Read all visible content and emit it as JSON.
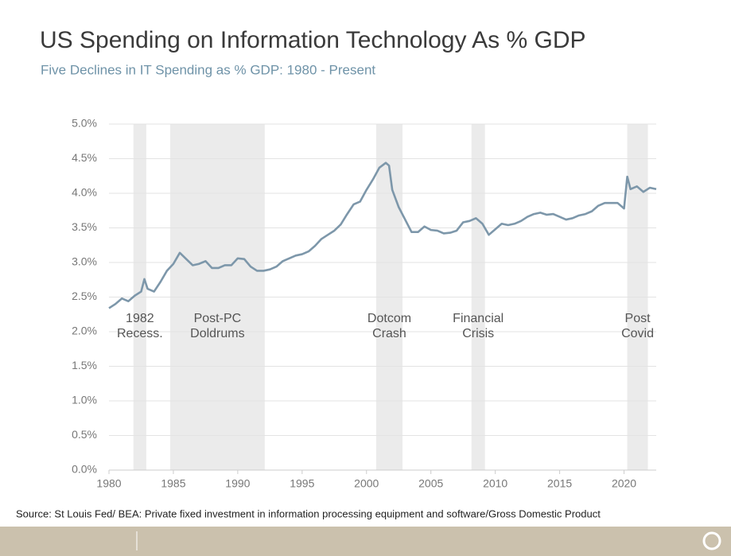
{
  "chart_data": {
    "type": "line",
    "title": "US Spending on Information Technology As % GDP",
    "subtitle": "Five Declines in IT Spending as % GDP: 1980 - Present",
    "source": "Source: St Louis Fed/ BEA: Private fixed investment in information processing equipment and software/Gross Domestic Product",
    "color": "#7d97aa",
    "x": [
      1980.0,
      1980.5,
      1981.0,
      1981.5,
      1982.0,
      1982.5,
      1982.75,
      1983.0,
      1983.5,
      1984.0,
      1984.5,
      1985.0,
      1985.5,
      1986.0,
      1986.5,
      1987.0,
      1987.5,
      1988.0,
      1988.5,
      1989.0,
      1989.5,
      1990.0,
      1990.5,
      1991.0,
      1991.5,
      1992.0,
      1992.5,
      1993.0,
      1993.5,
      1994.0,
      1994.5,
      1995.0,
      1995.5,
      1996.0,
      1996.5,
      1997.0,
      1997.5,
      1998.0,
      1998.5,
      1999.0,
      1999.5,
      2000.0,
      2000.5,
      2001.0,
      2001.5,
      2001.75,
      2002.0,
      2002.5,
      2003.0,
      2003.5,
      2004.0,
      2004.5,
      2005.0,
      2005.5,
      2006.0,
      2006.5,
      2007.0,
      2007.5,
      2008.0,
      2008.5,
      2009.0,
      2009.5,
      2010.0,
      2010.5,
      2011.0,
      2011.5,
      2012.0,
      2012.5,
      2013.0,
      2013.5,
      2014.0,
      2014.5,
      2015.0,
      2015.5,
      2016.0,
      2016.5,
      2017.0,
      2017.5,
      2018.0,
      2018.5,
      2019.0,
      2019.5,
      2020.0,
      2020.25,
      2020.5,
      2021.0,
      2021.5,
      2022.0,
      2022.5
    ],
    "values": [
      2.34,
      2.4,
      2.48,
      2.44,
      2.52,
      2.58,
      2.76,
      2.62,
      2.58,
      2.72,
      2.88,
      2.98,
      3.14,
      3.05,
      2.96,
      2.98,
      3.02,
      2.92,
      2.92,
      2.96,
      2.96,
      3.06,
      3.05,
      2.94,
      2.88,
      2.88,
      2.9,
      2.94,
      3.02,
      3.06,
      3.1,
      3.12,
      3.16,
      3.24,
      3.34,
      3.4,
      3.46,
      3.55,
      3.7,
      3.84,
      3.88,
      4.05,
      4.2,
      4.37,
      4.44,
      4.4,
      4.05,
      3.8,
      3.62,
      3.44,
      3.44,
      3.52,
      3.47,
      3.46,
      3.42,
      3.43,
      3.46,
      3.58,
      3.6,
      3.64,
      3.56,
      3.4,
      3.48,
      3.56,
      3.54,
      3.56,
      3.6,
      3.66,
      3.7,
      3.72,
      3.69,
      3.7,
      3.66,
      3.62,
      3.64,
      3.68,
      3.7,
      3.74,
      3.82,
      3.86,
      3.86,
      3.86,
      3.78,
      4.24,
      4.06,
      4.1,
      4.02,
      4.08,
      4.06
    ],
    "xlim": [
      1980,
      2022.5
    ],
    "xticks": [
      1980,
      1985,
      1990,
      1995,
      2000,
      2005,
      2010,
      2015,
      2020
    ],
    "ylim": [
      0,
      5
    ],
    "yticks": [
      {
        "value": 0,
        "label": "0.0%"
      },
      {
        "value": 0.5,
        "label": "0.5%"
      },
      {
        "value": 1,
        "label": "1.0%"
      },
      {
        "value": 1.5,
        "label": "1.5%"
      },
      {
        "value": 2,
        "label": "2.0%"
      },
      {
        "value": 2.5,
        "label": "2.5%"
      },
      {
        "value": 3,
        "label": "3.0%"
      },
      {
        "value": 3.5,
        "label": "3.5%"
      },
      {
        "value": 4,
        "label": "4.0%"
      },
      {
        "value": 4.5,
        "label": "4.5%"
      },
      {
        "value": 5,
        "label": "5.0%"
      }
    ],
    "grid": true,
    "shaded": [
      {
        "start": 1981.9,
        "end": 1982.9,
        "label": [
          "1982",
          "Recess."
        ]
      },
      {
        "start": 1984.75,
        "end": 1992.1,
        "label": [
          "Post-PC",
          "Doldrums"
        ]
      },
      {
        "start": 2000.75,
        "end": 2002.8,
        "label": [
          "Dotcom",
          "Crash"
        ]
      },
      {
        "start": 2008.15,
        "end": 2009.2,
        "label": [
          "Financial",
          "Crisis"
        ]
      },
      {
        "start": 2020.25,
        "end": 2021.85,
        "label": [
          "Post",
          "Covid"
        ]
      }
    ]
  }
}
